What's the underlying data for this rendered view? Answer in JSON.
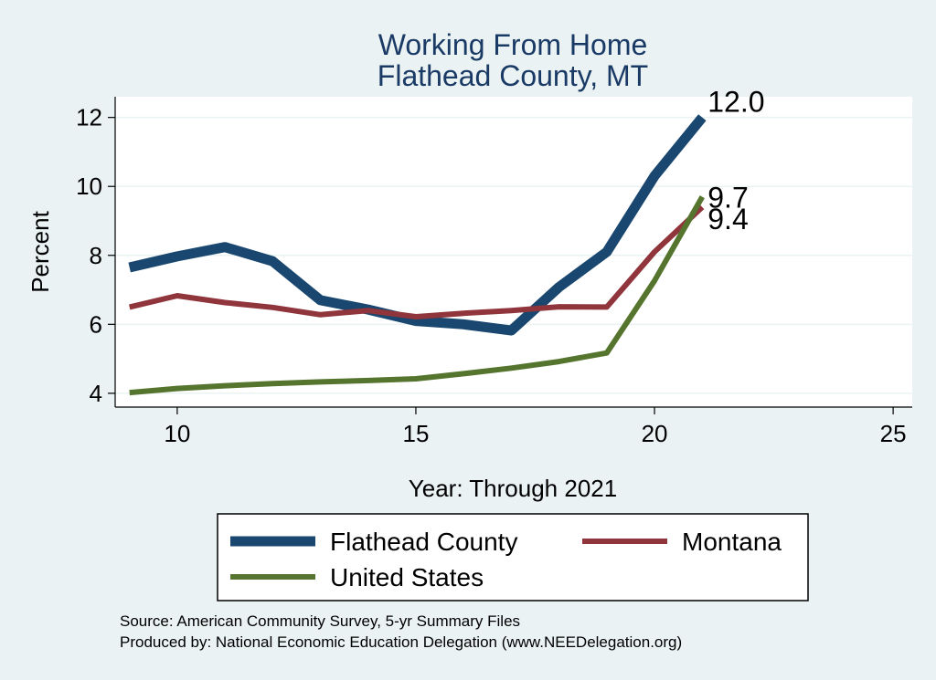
{
  "chart_data": {
    "type": "line",
    "title": [
      "Working From Home",
      "Flathead County, MT"
    ],
    "xlabel": "Year: Through 2021",
    "ylabel": "Percent",
    "xlim": [
      8.7,
      25.4
    ],
    "ylim": [
      3.6,
      12.6
    ],
    "xticks": [
      10,
      15,
      20,
      25
    ],
    "yticks": [
      4,
      6,
      8,
      10,
      12
    ],
    "grid": "horizontal",
    "legend_position": "bottom",
    "series": [
      {
        "name": "Flathead County",
        "color": "#1a476f",
        "end_label": "12.0",
        "x": [
          9,
          10,
          11,
          12,
          13,
          14,
          15,
          16,
          17,
          18,
          19,
          20,
          21
        ],
        "y": [
          7.65,
          7.97,
          8.24,
          7.83,
          6.7,
          6.43,
          6.1,
          6.0,
          5.82,
          7.08,
          8.1,
          10.3,
          12.0
        ]
      },
      {
        "name": "Montana",
        "color": "#90353b",
        "end_label": "9.4",
        "x": [
          9,
          10,
          11,
          12,
          13,
          14,
          15,
          16,
          17,
          18,
          19,
          20,
          21
        ],
        "y": [
          6.5,
          6.83,
          6.63,
          6.49,
          6.28,
          6.4,
          6.22,
          6.32,
          6.4,
          6.51,
          6.5,
          8.1,
          9.4
        ]
      },
      {
        "name": "United States",
        "color": "#55752f",
        "end_label": "9.7",
        "x": [
          9,
          10,
          11,
          12,
          13,
          14,
          15,
          16,
          17,
          18,
          19,
          20,
          21
        ],
        "y": [
          4.02,
          4.14,
          4.22,
          4.28,
          4.33,
          4.37,
          4.42,
          4.57,
          4.73,
          4.92,
          5.17,
          7.26,
          9.7
        ]
      }
    ]
  },
  "notes": [
    "Source: American Community Survey, 5-yr Summary Files",
    "Produced by: National Economic Education Delegation (www.NEEDelegation.org)"
  ]
}
